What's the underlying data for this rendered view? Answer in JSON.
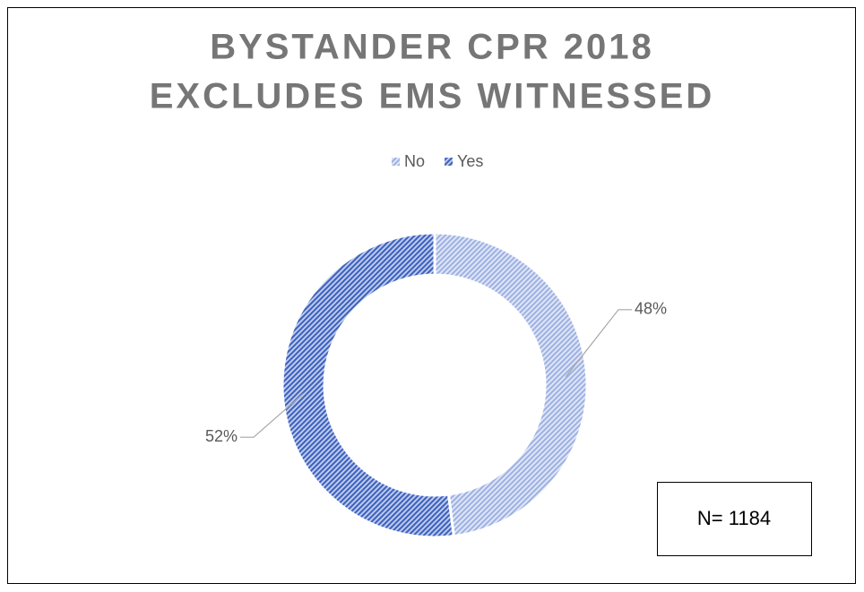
{
  "chart_data": {
    "type": "donut",
    "title": [
      "BYSTANDER CPR 2018",
      "EXCLUDES EMS WITNESSED"
    ],
    "categories": [
      "No",
      "Yes"
    ],
    "values": [
      48,
      52
    ],
    "value_labels": [
      "48%",
      "52%"
    ],
    "colors": [
      "#9fb2e3",
      "#3f63bf"
    ],
    "legend": "top",
    "annotation": "N= 1184"
  }
}
